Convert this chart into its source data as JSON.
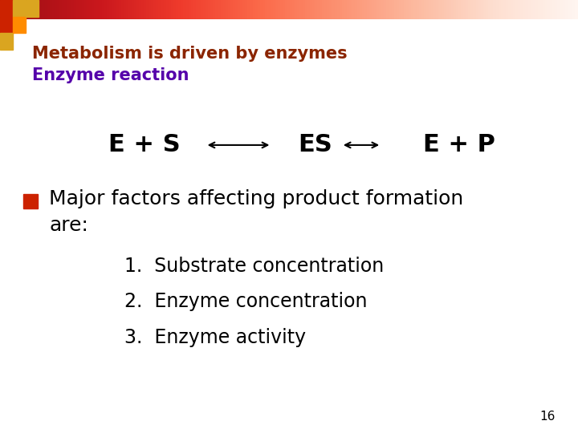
{
  "title_line1": "Metabolism is driven by enzymes",
  "title_line2": "Enzyme reaction",
  "title_color": "#8B2500",
  "subtitle_color": "#5500AA",
  "bullet_color": "#CC2200",
  "bullet_text_line1": "Major factors affecting product formation",
  "bullet_text_line2": "are:",
  "numbered_items": [
    "1.  Substrate concentration",
    "2.  Enzyme concentration",
    "3.  Enzyme activity"
  ],
  "page_number": "16",
  "bg_color": "#FFFFFF",
  "title_fontsize": 15,
  "subtitle_fontsize": 15,
  "eq_fontsize": 22,
  "body_fontsize": 18,
  "numbered_fontsize": 17
}
